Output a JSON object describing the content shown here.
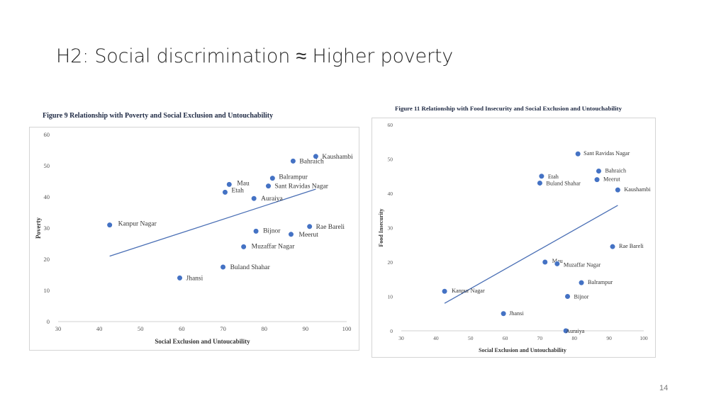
{
  "slide": {
    "title": "H2: Social discrimination ≈ Higher poverty",
    "page_number": "14"
  },
  "chart_data": [
    {
      "type": "scatter",
      "title": "Figure 9 Relationship with Poverty and Social Exclusion and Untouchability",
      "xlabel": "Social Exclusion and Untoucability",
      "ylabel": "Poverty",
      "xlim": [
        30,
        100
      ],
      "ylim": [
        0,
        60
      ],
      "xticks": [
        30,
        40,
        50,
        60,
        70,
        80,
        90,
        100
      ],
      "yticks": [
        0,
        10,
        20,
        30,
        40,
        50,
        60
      ],
      "grid": false,
      "marker_color": "#4472c4",
      "trendline_color": "#4a6fb5",
      "points": [
        {
          "label": "Kaushambi",
          "x": 92.5,
          "y": 53
        },
        {
          "label": "Bahraich",
          "x": 87,
          "y": 51.5
        },
        {
          "label": "Balrampur",
          "x": 82,
          "y": 46
        },
        {
          "label": "Mau",
          "x": 71.5,
          "y": 44
        },
        {
          "label": "Sant Ravidas Nagar",
          "x": 81,
          "y": 43.5
        },
        {
          "label": "Etah",
          "x": 70.5,
          "y": 41.5
        },
        {
          "label": "Auraiya",
          "x": 77.5,
          "y": 39.5
        },
        {
          "label": "Kanpur Nagar",
          "x": 42.5,
          "y": 31
        },
        {
          "label": "Rae Bareli",
          "x": 91,
          "y": 30.5
        },
        {
          "label": "Bijnor",
          "x": 78,
          "y": 29
        },
        {
          "label": "Meerut",
          "x": 86.5,
          "y": 28
        },
        {
          "label": "Muzaffar Nagar",
          "x": 75,
          "y": 24
        },
        {
          "label": "Buland Shahar",
          "x": 70,
          "y": 17.5
        },
        {
          "label": "Jhansi",
          "x": 59.5,
          "y": 14
        }
      ],
      "trendline": {
        "x": [
          42.5,
          92.5
        ],
        "y": [
          21,
          42.5
        ]
      }
    },
    {
      "type": "scatter",
      "title": "Figure 11 Relationship with Food Insecurity and Social Exclusion and Untouchability",
      "xlabel": "Social Exclusion and Untouchability",
      "ylabel": "Food Insecurity",
      "xlim": [
        30,
        100
      ],
      "ylim": [
        0,
        60
      ],
      "xticks": [
        30,
        40,
        50,
        60,
        70,
        80,
        90,
        100
      ],
      "yticks": [
        0,
        10,
        20,
        30,
        40,
        50,
        60
      ],
      "grid": false,
      "marker_color": "#4472c4",
      "trendline_color": "#4a6fb5",
      "points": [
        {
          "label": "Sant Ravidas Nagar",
          "x": 81,
          "y": 51.5
        },
        {
          "label": "Bahraich",
          "x": 87,
          "y": 46.5
        },
        {
          "label": "Etah",
          "x": 70.5,
          "y": 45
        },
        {
          "label": "Meerut",
          "x": 86.5,
          "y": 44
        },
        {
          "label": "Buland Shahar",
          "x": 70,
          "y": 43
        },
        {
          "label": "Kaushambi",
          "x": 92.5,
          "y": 41
        },
        {
          "label": "Rae Bareli",
          "x": 91,
          "y": 24.5
        },
        {
          "label": "Mau",
          "x": 71.5,
          "y": 20
        },
        {
          "label": "Muzaffar Nagar",
          "x": 75,
          "y": 19.5
        },
        {
          "label": "Balrampur",
          "x": 82,
          "y": 14
        },
        {
          "label": "Kanpur Nagar",
          "x": 42.5,
          "y": 11.5
        },
        {
          "label": "Bijnor",
          "x": 78,
          "y": 10
        },
        {
          "label": "Jhansi",
          "x": 59.5,
          "y": 5
        },
        {
          "label": "Auraiya",
          "x": 77.5,
          "y": 0
        }
      ],
      "trendline": {
        "x": [
          42.5,
          92.5
        ],
        "y": [
          8,
          36.5
        ]
      }
    }
  ]
}
